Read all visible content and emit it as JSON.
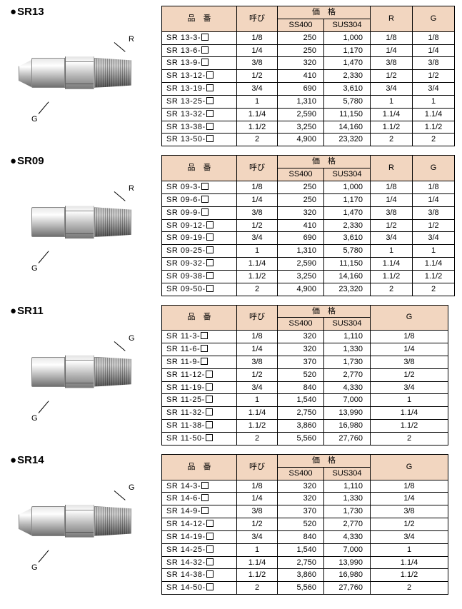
{
  "headers": {
    "part": "品　番",
    "yobi": "呼び",
    "price": "価　格",
    "ss400": "SS400",
    "sus304": "SUS304",
    "r": "R",
    "g": "G"
  },
  "labels": {
    "r": "R",
    "g": "G"
  },
  "colors": {
    "header_bg": "#f2d6c0",
    "border": "#000000",
    "text": "#000000"
  },
  "sections": [
    {
      "id": "SR13",
      "title": "SR13",
      "type": "RG",
      "diagram": {
        "top_label": "R",
        "bottom_label": "G",
        "flare": true
      },
      "rows": [
        {
          "part": "SR 13-3-",
          "yobi": "1/8",
          "ss400": "250",
          "sus304": "1,000",
          "r": "1/8",
          "g": "1/8"
        },
        {
          "part": "SR 13-6-",
          "yobi": "1/4",
          "ss400": "250",
          "sus304": "1,170",
          "r": "1/4",
          "g": "1/4"
        },
        {
          "part": "SR 13-9-",
          "yobi": "3/8",
          "ss400": "320",
          "sus304": "1,470",
          "r": "3/8",
          "g": "3/8"
        },
        {
          "part": "SR 13-12-",
          "yobi": "1/2",
          "ss400": "410",
          "sus304": "2,330",
          "r": "1/2",
          "g": "1/2"
        },
        {
          "part": "SR 13-19-",
          "yobi": "3/4",
          "ss400": "690",
          "sus304": "3,610",
          "r": "3/4",
          "g": "3/4"
        },
        {
          "part": "SR 13-25-",
          "yobi": "1",
          "ss400": "1,310",
          "sus304": "5,780",
          "r": "1",
          "g": "1"
        },
        {
          "part": "SR 13-32-",
          "yobi": "1.1/4",
          "ss400": "2,590",
          "sus304": "11,150",
          "r": "1.1/4",
          "g": "1.1/4"
        },
        {
          "part": "SR 13-38-",
          "yobi": "1.1/2",
          "ss400": "3,250",
          "sus304": "14,160",
          "r": "1.1/2",
          "g": "1.1/2"
        },
        {
          "part": "SR 13-50-",
          "yobi": "2",
          "ss400": "4,900",
          "sus304": "23,320",
          "r": "2",
          "g": "2"
        }
      ]
    },
    {
      "id": "SR09",
      "title": "SR09",
      "type": "RG",
      "diagram": {
        "top_label": "R",
        "bottom_label": "G",
        "flare": false
      },
      "rows": [
        {
          "part": "SR 09-3-",
          "yobi": "1/8",
          "ss400": "250",
          "sus304": "1,000",
          "r": "1/8",
          "g": "1/8"
        },
        {
          "part": "SR 09-6-",
          "yobi": "1/4",
          "ss400": "250",
          "sus304": "1,170",
          "r": "1/4",
          "g": "1/4"
        },
        {
          "part": "SR 09-9-",
          "yobi": "3/8",
          "ss400": "320",
          "sus304": "1,470",
          "r": "3/8",
          "g": "3/8"
        },
        {
          "part": "SR 09-12-",
          "yobi": "1/2",
          "ss400": "410",
          "sus304": "2,330",
          "r": "1/2",
          "g": "1/2"
        },
        {
          "part": "SR 09-19-",
          "yobi": "3/4",
          "ss400": "690",
          "sus304": "3,610",
          "r": "3/4",
          "g": "3/4"
        },
        {
          "part": "SR 09-25-",
          "yobi": "1",
          "ss400": "1,310",
          "sus304": "5,780",
          "r": "1",
          "g": "1"
        },
        {
          "part": "SR 09-32-",
          "yobi": "1.1/4",
          "ss400": "2,590",
          "sus304": "11,150",
          "r": "1.1/4",
          "g": "1.1/4"
        },
        {
          "part": "SR 09-38-",
          "yobi": "1.1/2",
          "ss400": "3,250",
          "sus304": "14,160",
          "r": "1.1/2",
          "g": "1.1/2"
        },
        {
          "part": "SR 09-50-",
          "yobi": "2",
          "ss400": "4,900",
          "sus304": "23,320",
          "r": "2",
          "g": "2"
        }
      ]
    },
    {
      "id": "SR11",
      "title": "SR11",
      "type": "G",
      "diagram": {
        "top_label": "G",
        "bottom_label": "G",
        "flare": false
      },
      "rows": [
        {
          "part": "SR 11-3-",
          "yobi": "1/8",
          "ss400": "320",
          "sus304": "1,110",
          "g": "1/8"
        },
        {
          "part": "SR 11-6-",
          "yobi": "1/4",
          "ss400": "320",
          "sus304": "1,330",
          "g": "1/4"
        },
        {
          "part": "SR 11-9-",
          "yobi": "3/8",
          "ss400": "370",
          "sus304": "1,730",
          "g": "3/8"
        },
        {
          "part": "SR 11-12-",
          "yobi": "1/2",
          "ss400": "520",
          "sus304": "2,770",
          "g": "1/2"
        },
        {
          "part": "SR 11-19-",
          "yobi": "3/4",
          "ss400": "840",
          "sus304": "4,330",
          "g": "3/4"
        },
        {
          "part": "SR 11-25-",
          "yobi": "1",
          "ss400": "1,540",
          "sus304": "7,000",
          "g": "1"
        },
        {
          "part": "SR 11-32-",
          "yobi": "1.1/4",
          "ss400": "2,750",
          "sus304": "13,990",
          "g": "1.1/4"
        },
        {
          "part": "SR 11-38-",
          "yobi": "1.1/2",
          "ss400": "3,860",
          "sus304": "16,980",
          "g": "1.1/2"
        },
        {
          "part": "SR 11-50-",
          "yobi": "2",
          "ss400": "5,560",
          "sus304": "27,760",
          "g": "2"
        }
      ]
    },
    {
      "id": "SR14",
      "title": "SR14",
      "type": "G",
      "diagram": {
        "top_label": "G",
        "bottom_label": "G",
        "flare": true
      },
      "rows": [
        {
          "part": "SR 14-3-",
          "yobi": "1/8",
          "ss400": "320",
          "sus304": "1,110",
          "g": "1/8"
        },
        {
          "part": "SR 14-6-",
          "yobi": "1/4",
          "ss400": "320",
          "sus304": "1,330",
          "g": "1/4"
        },
        {
          "part": "SR 14-9-",
          "yobi": "3/8",
          "ss400": "370",
          "sus304": "1,730",
          "g": "3/8"
        },
        {
          "part": "SR 14-12-",
          "yobi": "1/2",
          "ss400": "520",
          "sus304": "2,770",
          "g": "1/2"
        },
        {
          "part": "SR 14-19-",
          "yobi": "3/4",
          "ss400": "840",
          "sus304": "4,330",
          "g": "3/4"
        },
        {
          "part": "SR 14-25-",
          "yobi": "1",
          "ss400": "1,540",
          "sus304": "7,000",
          "g": "1"
        },
        {
          "part": "SR 14-32-",
          "yobi": "1.1/4",
          "ss400": "2,750",
          "sus304": "13,990",
          "g": "1.1/4"
        },
        {
          "part": "SR 14-38-",
          "yobi": "1.1/2",
          "ss400": "3,860",
          "sus304": "16,980",
          "g": "1.1/2"
        },
        {
          "part": "SR 14-50-",
          "yobi": "2",
          "ss400": "5,560",
          "sus304": "27,760",
          "g": "2"
        }
      ]
    }
  ]
}
